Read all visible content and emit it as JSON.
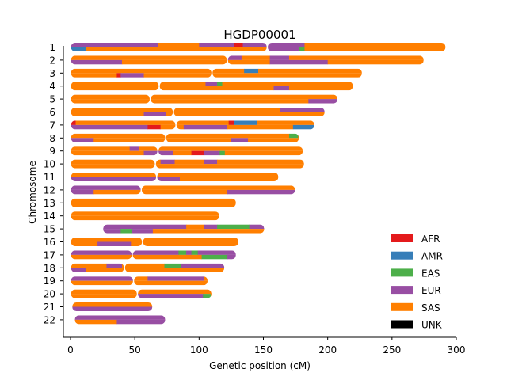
{
  "chart_data": {
    "type": "karyogram",
    "title": "HGDP00001",
    "xlabel": "Genetic position (cM)",
    "ylabel": "Chromosome",
    "xlim": [
      0,
      300
    ],
    "x_ticks": [
      0,
      50,
      100,
      150,
      200,
      250,
      300
    ],
    "grid": false,
    "legend_position": "lower-right",
    "colors": {
      "AFR": "#e41a1c",
      "AMR": "#377eb8",
      "EAS": "#4daf4a",
      "EUR": "#984ea3",
      "SAS": "#ff7f00",
      "UNK": "#000000"
    },
    "legend": [
      "AFR",
      "AMR",
      "EAS",
      "EUR",
      "SAS",
      "UNK"
    ],
    "chromosomes": [
      {
        "label": "1",
        "start": 0,
        "end": 292,
        "centromere": 153,
        "hap1": [
          [
            0,
            68,
            "EUR"
          ],
          [
            68,
            100,
            "SAS"
          ],
          [
            100,
            127,
            "EUR"
          ],
          [
            127,
            134,
            "AFR"
          ],
          [
            134,
            153,
            "EUR"
          ],
          [
            153,
            182,
            "EUR"
          ],
          [
            182,
            292,
            "SAS"
          ]
        ],
        "hap2": [
          [
            0,
            12,
            "AMR"
          ],
          [
            12,
            153,
            "SAS"
          ],
          [
            153,
            178,
            "EUR"
          ],
          [
            178,
            182,
            "EAS"
          ],
          [
            182,
            292,
            "SAS"
          ]
        ]
      },
      {
        "label": "2",
        "start": 0,
        "end": 275,
        "centromere": 122,
        "hap1": [
          [
            0,
            122,
            "SAS"
          ],
          [
            122,
            133,
            "EUR"
          ],
          [
            133,
            155,
            "SAS"
          ],
          [
            155,
            170,
            "EUR"
          ],
          [
            170,
            275,
            "SAS"
          ]
        ],
        "hap2": [
          [
            0,
            40,
            "EUR"
          ],
          [
            40,
            122,
            "SAS"
          ],
          [
            122,
            155,
            "SAS"
          ],
          [
            155,
            200,
            "EUR"
          ],
          [
            200,
            275,
            "SAS"
          ]
        ]
      },
      {
        "label": "3",
        "start": 0,
        "end": 227,
        "centromere": 110,
        "hap1": [
          [
            0,
            110,
            "SAS"
          ],
          [
            110,
            135,
            "SAS"
          ],
          [
            135,
            146,
            "AMR"
          ],
          [
            146,
            227,
            "SAS"
          ]
        ],
        "hap2": [
          [
            0,
            36,
            "SAS"
          ],
          [
            36,
            39,
            "AFR"
          ],
          [
            39,
            57,
            "EUR"
          ],
          [
            57,
            110,
            "SAS"
          ],
          [
            110,
            227,
            "SAS"
          ]
        ]
      },
      {
        "label": "4",
        "start": 0,
        "end": 220,
        "centromere": 69,
        "hap1": [
          [
            0,
            69,
            "SAS"
          ],
          [
            69,
            105,
            "SAS"
          ],
          [
            105,
            114,
            "EUR"
          ],
          [
            114,
            118,
            "EAS"
          ],
          [
            118,
            220,
            "SAS"
          ]
        ],
        "hap2": [
          [
            0,
            69,
            "SAS"
          ],
          [
            69,
            158,
            "SAS"
          ],
          [
            158,
            170,
            "EUR"
          ],
          [
            170,
            220,
            "SAS"
          ]
        ]
      },
      {
        "label": "5",
        "start": 0,
        "end": 208,
        "centromere": 62,
        "hap1": [
          [
            0,
            62,
            "SAS"
          ],
          [
            62,
            208,
            "SAS"
          ]
        ],
        "hap2": [
          [
            0,
            62,
            "SAS"
          ],
          [
            62,
            185,
            "SAS"
          ],
          [
            185,
            208,
            "EUR"
          ]
        ]
      },
      {
        "label": "6",
        "start": 0,
        "end": 198,
        "centromere": 80,
        "hap1": [
          [
            0,
            80,
            "SAS"
          ],
          [
            80,
            163,
            "SAS"
          ],
          [
            163,
            198,
            "EUR"
          ]
        ],
        "hap2": [
          [
            0,
            57,
            "SAS"
          ],
          [
            57,
            74,
            "EUR"
          ],
          [
            74,
            80,
            "SAS"
          ],
          [
            80,
            198,
            "SAS"
          ]
        ]
      },
      {
        "label": "7",
        "start": 0,
        "end": 190,
        "centromere": 82,
        "hap1": [
          [
            0,
            4,
            "AFR"
          ],
          [
            4,
            82,
            "SAS"
          ],
          [
            82,
            123,
            "SAS"
          ],
          [
            123,
            127,
            "AFR"
          ],
          [
            127,
            145,
            "AMR"
          ],
          [
            145,
            190,
            "SAS"
          ]
        ],
        "hap2": [
          [
            0,
            60,
            "EUR"
          ],
          [
            60,
            70,
            "AFR"
          ],
          [
            70,
            82,
            "SAS"
          ],
          [
            82,
            88,
            "SAS"
          ],
          [
            88,
            122,
            "EUR"
          ],
          [
            122,
            173,
            "SAS"
          ],
          [
            173,
            190,
            "AMR"
          ]
        ]
      },
      {
        "label": "8",
        "start": 0,
        "end": 178,
        "centromere": 74,
        "hap1": [
          [
            0,
            74,
            "SAS"
          ],
          [
            74,
            170,
            "SAS"
          ],
          [
            170,
            177,
            "EAS"
          ],
          [
            177,
            178,
            "SAS"
          ]
        ],
        "hap2": [
          [
            0,
            18,
            "EUR"
          ],
          [
            18,
            74,
            "SAS"
          ],
          [
            74,
            125,
            "SAS"
          ],
          [
            125,
            138,
            "EUR"
          ],
          [
            138,
            178,
            "SAS"
          ]
        ]
      },
      {
        "label": "9",
        "start": 0,
        "end": 181,
        "centromere": 68,
        "hap1": [
          [
            0,
            46,
            "SAS"
          ],
          [
            46,
            53,
            "EUR"
          ],
          [
            53,
            68,
            "SAS"
          ],
          [
            68,
            181,
            "SAS"
          ]
        ],
        "hap2": [
          [
            0,
            57,
            "SAS"
          ],
          [
            57,
            68,
            "EUR"
          ],
          [
            68,
            80,
            "EUR"
          ],
          [
            80,
            94,
            "SAS"
          ],
          [
            94,
            104,
            "AFR"
          ],
          [
            104,
            116,
            "EUR"
          ],
          [
            116,
            120,
            "EAS"
          ],
          [
            120,
            181,
            "SAS"
          ]
        ]
      },
      {
        "label": "10",
        "start": 0,
        "end": 182,
        "centromere": 66,
        "hap1": [
          [
            0,
            66,
            "SAS"
          ],
          [
            66,
            70,
            "SAS"
          ],
          [
            70,
            81,
            "EUR"
          ],
          [
            81,
            104,
            "SAS"
          ],
          [
            104,
            114,
            "EUR"
          ],
          [
            114,
            182,
            "SAS"
          ]
        ],
        "hap2": [
          [
            0,
            66,
            "SAS"
          ],
          [
            66,
            182,
            "SAS"
          ]
        ]
      },
      {
        "label": "11",
        "start": 0,
        "end": 162,
        "centromere": 67,
        "hap1": [
          [
            0,
            67,
            "SAS"
          ],
          [
            67,
            162,
            "SAS"
          ]
        ],
        "hap2": [
          [
            0,
            67,
            "EUR"
          ],
          [
            67,
            85,
            "EUR"
          ],
          [
            85,
            162,
            "SAS"
          ]
        ]
      },
      {
        "label": "12",
        "start": 0,
        "end": 175,
        "centromere": 55,
        "hap1": [
          [
            0,
            55,
            "EUR"
          ],
          [
            55,
            175,
            "SAS"
          ]
        ],
        "hap2": [
          [
            0,
            18,
            "EUR"
          ],
          [
            18,
            55,
            "SAS"
          ],
          [
            55,
            122,
            "SAS"
          ],
          [
            122,
            175,
            "EUR"
          ]
        ]
      },
      {
        "label": "13",
        "start": 0,
        "end": 129,
        "centromere": 0,
        "hap1": [
          [
            0,
            129,
            "SAS"
          ]
        ],
        "hap2": [
          [
            0,
            129,
            "SAS"
          ]
        ]
      },
      {
        "label": "14",
        "start": 0,
        "end": 116,
        "centromere": 0,
        "hap1": [
          [
            0,
            116,
            "SAS"
          ]
        ],
        "hap2": [
          [
            0,
            116,
            "SAS"
          ]
        ]
      },
      {
        "label": "15",
        "start": 25,
        "end": 151,
        "centromere": 0,
        "hap1": [
          [
            25,
            90,
            "EUR"
          ],
          [
            90,
            104,
            "SAS"
          ],
          [
            104,
            114,
            "EUR"
          ],
          [
            114,
            139,
            "EAS"
          ],
          [
            139,
            151,
            "EUR"
          ]
        ],
        "hap2": [
          [
            25,
            39,
            "EUR"
          ],
          [
            39,
            48,
            "EAS"
          ],
          [
            48,
            64,
            "EUR"
          ],
          [
            64,
            151,
            "SAS"
          ]
        ]
      },
      {
        "label": "16",
        "start": 0,
        "end": 131,
        "centromere": 56,
        "hap1": [
          [
            0,
            56,
            "SAS"
          ],
          [
            56,
            131,
            "SAS"
          ]
        ],
        "hap2": [
          [
            0,
            21,
            "SAS"
          ],
          [
            21,
            47,
            "EUR"
          ],
          [
            47,
            56,
            "SAS"
          ],
          [
            56,
            131,
            "SAS"
          ]
        ]
      },
      {
        "label": "17",
        "start": 0,
        "end": 129,
        "centromere": 48,
        "hap1": [
          [
            0,
            48,
            "EUR"
          ],
          [
            48,
            84,
            "EUR"
          ],
          [
            84,
            90,
            "EAS"
          ],
          [
            90,
            94,
            "EUR"
          ],
          [
            94,
            99,
            "EAS"
          ],
          [
            99,
            129,
            "EUR"
          ]
        ],
        "hap2": [
          [
            0,
            48,
            "SAS"
          ],
          [
            48,
            102,
            "SAS"
          ],
          [
            102,
            122,
            "EAS"
          ],
          [
            122,
            129,
            "EUR"
          ]
        ]
      },
      {
        "label": "18",
        "start": 0,
        "end": 120,
        "centromere": 42,
        "hap1": [
          [
            0,
            28,
            "SAS"
          ],
          [
            28,
            40,
            "EUR"
          ],
          [
            40,
            42,
            "SAS"
          ],
          [
            42,
            73,
            "SAS"
          ],
          [
            73,
            86,
            "EAS"
          ],
          [
            86,
            120,
            "EUR"
          ]
        ],
        "hap2": [
          [
            0,
            12,
            "EUR"
          ],
          [
            12,
            42,
            "SAS"
          ],
          [
            42,
            120,
            "SAS"
          ]
        ]
      },
      {
        "label": "19",
        "start": 0,
        "end": 107,
        "centromere": 49,
        "hap1": [
          [
            0,
            49,
            "EUR"
          ],
          [
            49,
            60,
            "SAS"
          ],
          [
            60,
            104,
            "EUR"
          ],
          [
            104,
            107,
            "SAS"
          ]
        ],
        "hap2": [
          [
            0,
            49,
            "SAS"
          ],
          [
            49,
            107,
            "SAS"
          ]
        ]
      },
      {
        "label": "20",
        "start": 0,
        "end": 110,
        "centromere": 52,
        "hap1": [
          [
            0,
            52,
            "SAS"
          ],
          [
            52,
            110,
            "SAS"
          ]
        ],
        "hap2": [
          [
            0,
            52,
            "SAS"
          ],
          [
            52,
            103,
            "EUR"
          ],
          [
            103,
            109,
            "EAS"
          ],
          [
            109,
            110,
            "SAS"
          ]
        ]
      },
      {
        "label": "21",
        "start": 1,
        "end": 64,
        "centromere": 0,
        "hap1": [
          [
            1,
            64,
            "SAS"
          ]
        ],
        "hap2": [
          [
            1,
            64,
            "EUR"
          ]
        ]
      },
      {
        "label": "22",
        "start": 3,
        "end": 74,
        "centromere": 0,
        "hap1": [
          [
            3,
            74,
            "EUR"
          ]
        ],
        "hap2": [
          [
            3,
            36,
            "SAS"
          ],
          [
            36,
            74,
            "EUR"
          ]
        ]
      }
    ]
  }
}
